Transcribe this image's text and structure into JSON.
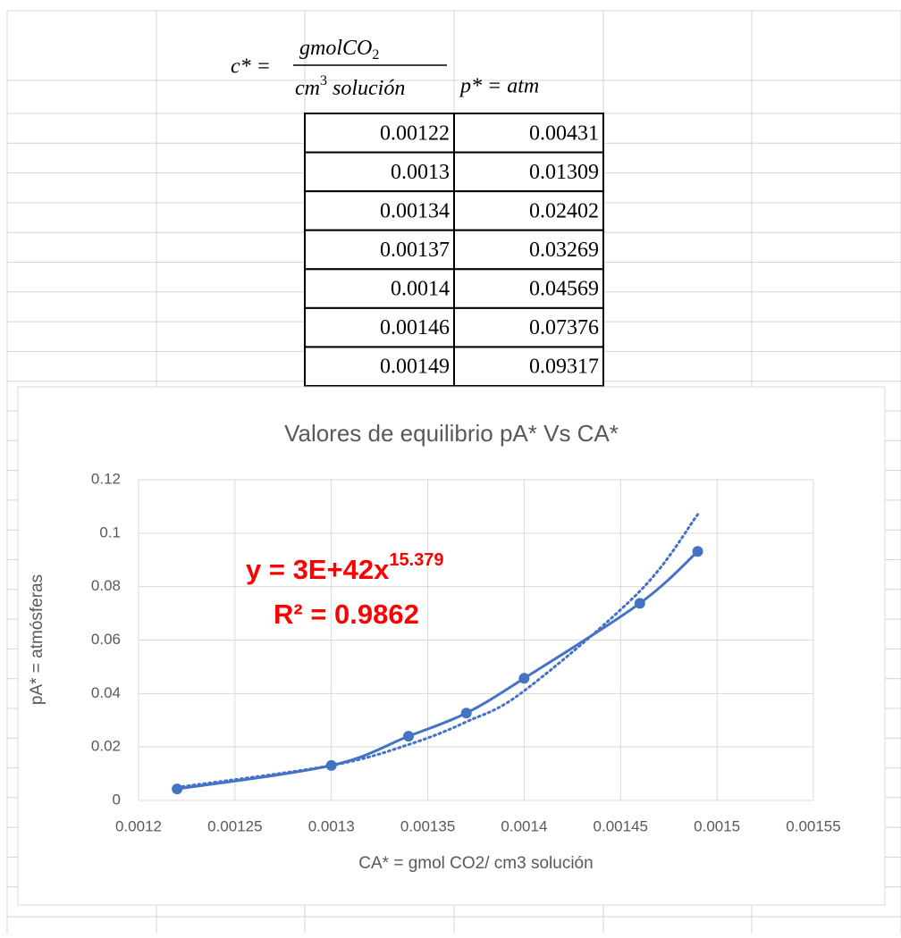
{
  "formula": {
    "c_label": "c* =",
    "numerator": "gmolCO",
    "numerator_sub": "2",
    "denominator": "cm",
    "denominator_sup": "3",
    "denominator_rest": "solución",
    "p_label": "p* = atm"
  },
  "table": {
    "rows": [
      [
        0.00122,
        0.00431
      ],
      [
        0.0013,
        0.01309
      ],
      [
        0.00134,
        0.02402
      ],
      [
        0.00137,
        0.03269
      ],
      [
        0.0014,
        0.04569
      ],
      [
        0.00146,
        0.07376
      ],
      [
        0.00149,
        0.09317
      ]
    ]
  },
  "chart_data": {
    "type": "scatter",
    "title": "Valores de equilibrio pA*  Vs   CA*",
    "x_label": "CA* = gmol CO2/ cm3 solución",
    "y_label": "pA* = atmósferas",
    "x": [
      0.00122,
      0.0013,
      0.00134,
      0.00137,
      0.0014,
      0.00146,
      0.00149
    ],
    "series": [
      {
        "name": "pA*",
        "color": "#4472c4",
        "values": [
          0.00431,
          0.01309,
          0.02402,
          0.03269,
          0.04569,
          0.07376,
          0.09317
        ]
      }
    ],
    "trendline": {
      "type": "power",
      "color": "#4472c4",
      "x": [
        0.00122,
        0.0013,
        0.00134,
        0.00137,
        0.0014,
        0.00146,
        0.00149
      ],
      "values": [
        0.0049,
        0.0131,
        0.0209,
        0.0294,
        0.041,
        0.0783,
        0.107
      ],
      "equation": "y = 3E+42x",
      "exponent": "15.379",
      "r_squared": "R² = 0.9862",
      "label_color": "#ff0000"
    },
    "xlim": [
      0.0012,
      0.00155
    ],
    "xticks": [
      0.0012,
      0.00125,
      0.0013,
      0.00135,
      0.0014,
      0.00145,
      0.0015,
      0.00155
    ],
    "ylim": [
      0,
      0.12
    ],
    "yticks": [
      0,
      0.02,
      0.04,
      0.06,
      0.08,
      0.1,
      0.12
    ],
    "grid": true
  }
}
